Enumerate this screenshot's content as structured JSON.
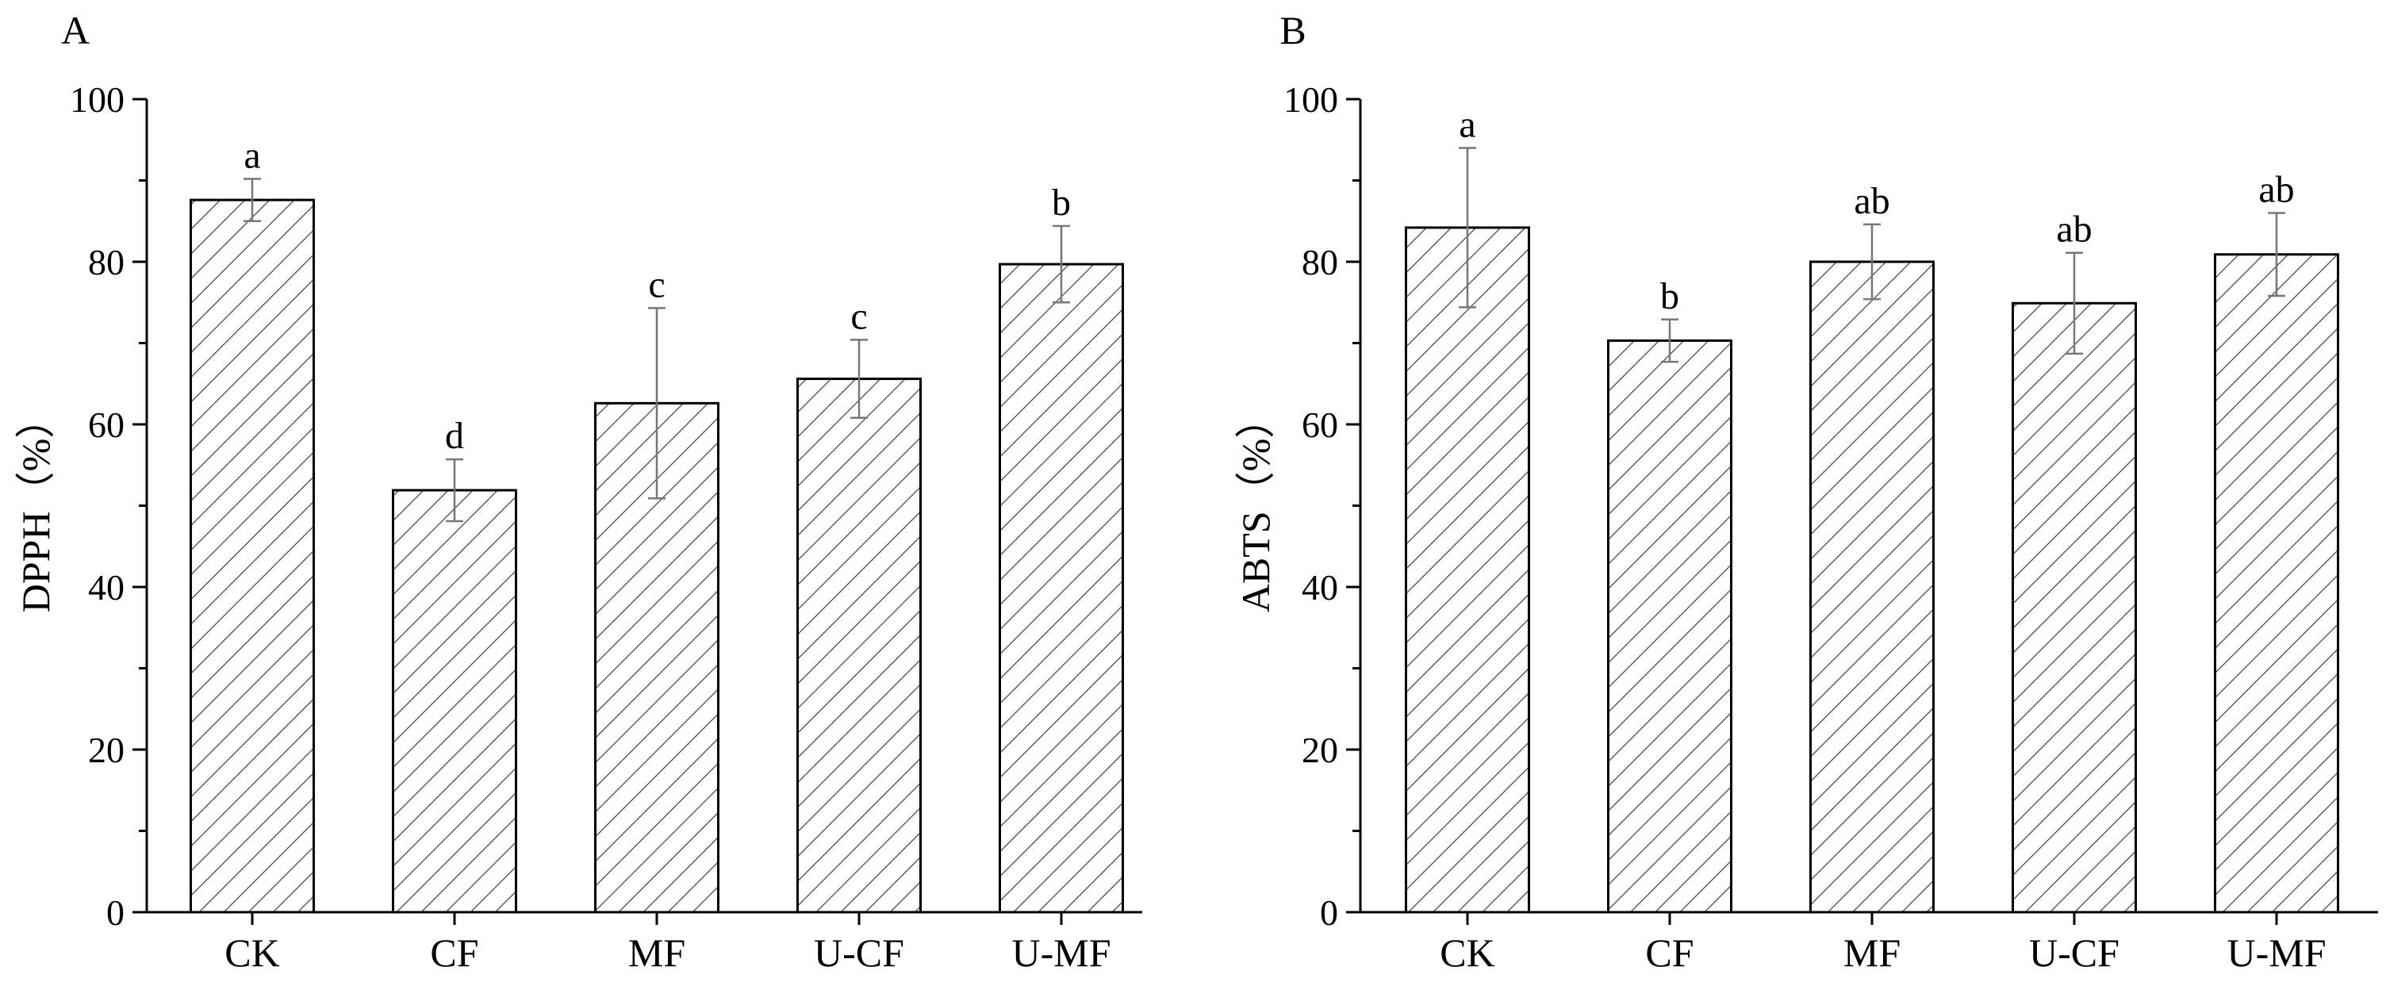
{
  "chart_data": [
    {
      "type": "bar",
      "panel": "A",
      "categories": [
        "CK",
        "CF",
        "MF",
        "U-CF",
        "U-MF"
      ],
      "values": [
        87.6,
        51.9,
        62.6,
        65.6,
        79.7
      ],
      "errors": [
        2.6,
        3.8,
        11.7,
        4.8,
        4.7
      ],
      "significance": [
        "a",
        "d",
        "c",
        "c",
        "b"
      ],
      "ylabel": "DPPH（%）",
      "xlabel": "",
      "ylim": [
        0,
        100
      ],
      "yticks": [
        "0",
        "20",
        "40",
        "60",
        "80",
        "100"
      ],
      "fill": "hatched",
      "grid": false
    },
    {
      "type": "bar",
      "panel": "B",
      "categories": [
        "CK",
        "CF",
        "MF",
        "U-CF",
        "U-MF"
      ],
      "values": [
        84.2,
        70.3,
        80.0,
        74.9,
        80.9
      ],
      "errors": [
        9.8,
        2.6,
        4.6,
        6.2,
        5.1
      ],
      "significance": [
        "a",
        "b",
        "ab",
        "ab",
        "ab"
      ],
      "ylabel": "ABTS（%）",
      "xlabel": "",
      "ylim": [
        0,
        100
      ],
      "yticks": [
        "0",
        "20",
        "40",
        "60",
        "80",
        "100"
      ],
      "fill": "hatched",
      "grid": false
    }
  ]
}
